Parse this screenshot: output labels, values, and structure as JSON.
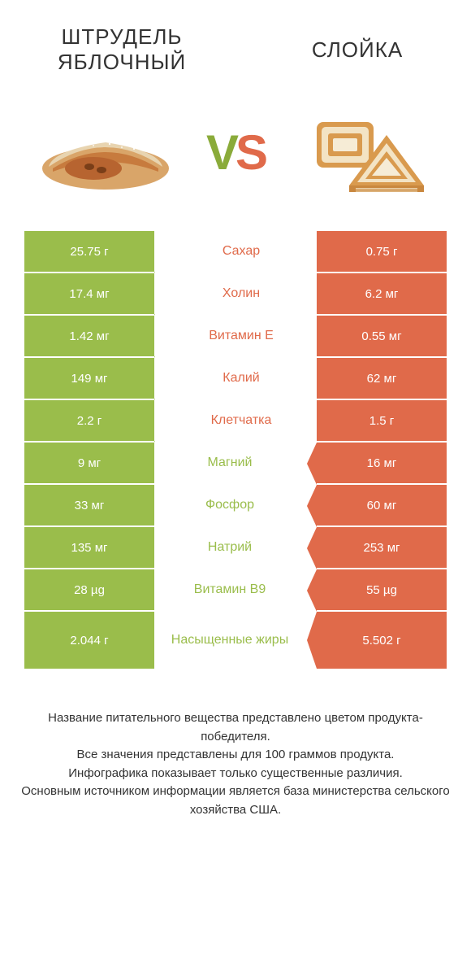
{
  "colors": {
    "green": "#9abd4b",
    "orange": "#e06a4a",
    "text": "#333333",
    "white": "#ffffff"
  },
  "header": {
    "left_title": "ШТРУДЕЛЬ ЯБЛОЧНЫЙ",
    "right_title": "СЛОЙКА",
    "vs_v": "V",
    "vs_s": "S"
  },
  "rows": [
    {
      "left": "25.75 г",
      "label": "Сахар",
      "right": "0.75 г",
      "winner": "left"
    },
    {
      "left": "17.4 мг",
      "label": "Холин",
      "right": "6.2 мг",
      "winner": "left"
    },
    {
      "left": "1.42 мг",
      "label": "Витамин Е",
      "right": "0.55 мг",
      "winner": "left"
    },
    {
      "left": "149 мг",
      "label": "Калий",
      "right": "62 мг",
      "winner": "left"
    },
    {
      "left": "2.2 г",
      "label": "Клетчатка",
      "right": "1.5 г",
      "winner": "left"
    },
    {
      "left": "9 мг",
      "label": "Магний",
      "right": "16 мг",
      "winner": "right"
    },
    {
      "left": "33 мг",
      "label": "Фосфор",
      "right": "60 мг",
      "winner": "right"
    },
    {
      "left": "135 мг",
      "label": "Натрий",
      "right": "253 мг",
      "winner": "right"
    },
    {
      "left": "28 µg",
      "label": "Витамин B9",
      "right": "55 µg",
      "winner": "right"
    },
    {
      "left": "2.044 г",
      "label": "Насыщенные жиры",
      "right": "5.502 г",
      "winner": "right"
    }
  ],
  "footer": {
    "line1": "Название питательного вещества представлено цветом продукта-победителя.",
    "line2": "Все значения представлены для 100 граммов продукта.",
    "line3": "Инфографика показывает только существенные различия.",
    "line4": "Основным источником информации является база министерства сельского хозяйства США."
  }
}
